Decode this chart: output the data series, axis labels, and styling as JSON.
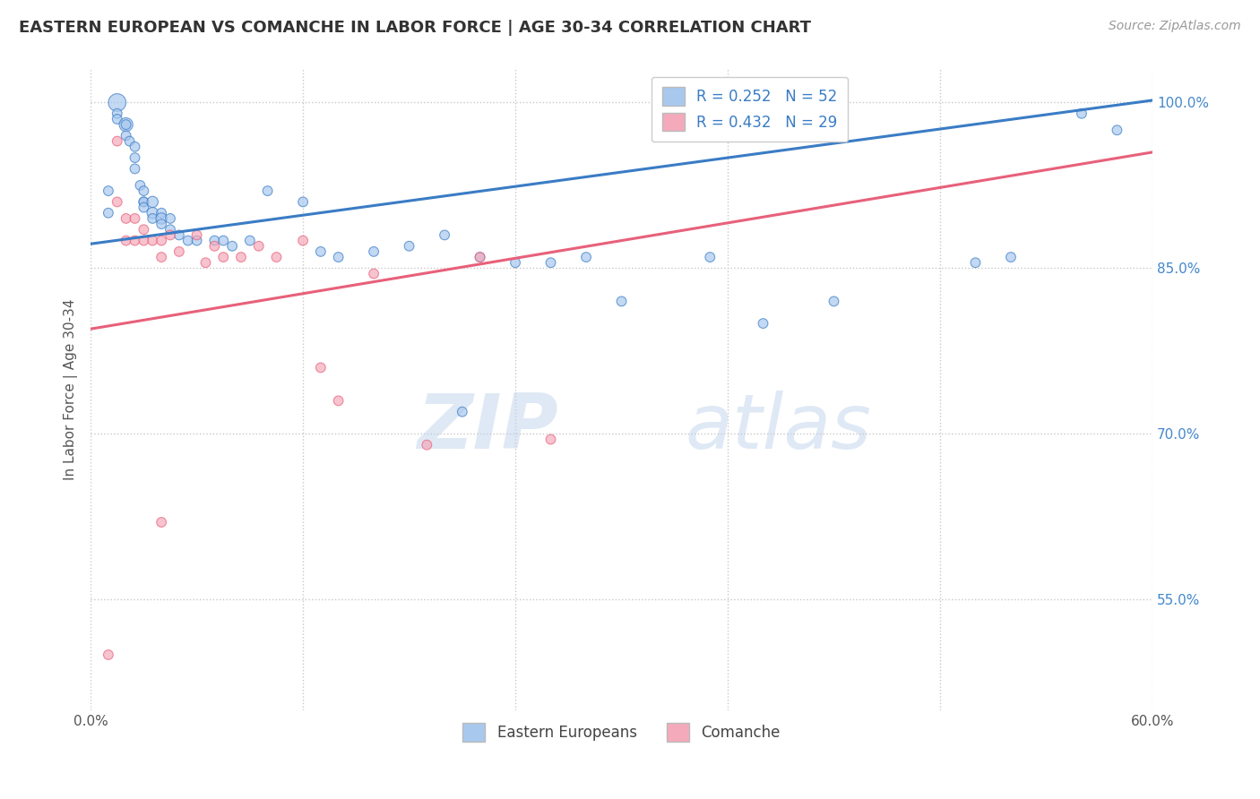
{
  "title": "EASTERN EUROPEAN VS COMANCHE IN LABOR FORCE | AGE 30-34 CORRELATION CHART",
  "source_text": "Source: ZipAtlas.com",
  "ylabel_text": "In Labor Force | Age 30-34",
  "xlim": [
    0.0,
    0.6
  ],
  "ylim": [
    0.45,
    1.03
  ],
  "xticks": [
    0.0,
    0.12,
    0.24,
    0.36,
    0.48,
    0.6
  ],
  "xticklabels": [
    "0.0%",
    "",
    "",
    "",
    "",
    "60.0%"
  ],
  "ytick_positions": [
    0.55,
    0.7,
    0.85,
    1.0
  ],
  "ytick_labels": [
    "55.0%",
    "70.0%",
    "85.0%",
    "100.0%"
  ],
  "blue_R": 0.252,
  "blue_N": 52,
  "pink_R": 0.432,
  "pink_N": 29,
  "blue_color": "#A8C8EE",
  "pink_color": "#F4AABB",
  "blue_line_color": "#3A7CC5",
  "pink_line_color": "#E8607A",
  "background_color": "#FFFFFF",
  "grid_color": "#C8C8C8",
  "blue_line_x0": 0.0,
  "blue_line_y0": 0.872,
  "blue_line_x1": 0.6,
  "blue_line_y1": 1.002,
  "pink_line_x0": 0.0,
  "pink_line_y0": 0.795,
  "pink_line_x1": 0.6,
  "pink_line_y1": 0.955,
  "blue_scatter_x": [
    0.01,
    0.01,
    0.015,
    0.015,
    0.015,
    0.02,
    0.02,
    0.02,
    0.022,
    0.025,
    0.025,
    0.025,
    0.028,
    0.03,
    0.03,
    0.03,
    0.03,
    0.035,
    0.035,
    0.035,
    0.04,
    0.04,
    0.04,
    0.045,
    0.045,
    0.05,
    0.055,
    0.06,
    0.07,
    0.075,
    0.08,
    0.09,
    0.1,
    0.12,
    0.13,
    0.14,
    0.16,
    0.18,
    0.2,
    0.21,
    0.22,
    0.24,
    0.26,
    0.28,
    0.3,
    0.35,
    0.38,
    0.42,
    0.5,
    0.52,
    0.56,
    0.58
  ],
  "blue_scatter_y": [
    0.92,
    0.9,
    1.0,
    0.99,
    0.985,
    0.98,
    0.98,
    0.97,
    0.965,
    0.96,
    0.95,
    0.94,
    0.925,
    0.92,
    0.91,
    0.91,
    0.905,
    0.91,
    0.9,
    0.895,
    0.9,
    0.895,
    0.89,
    0.895,
    0.885,
    0.88,
    0.875,
    0.875,
    0.875,
    0.875,
    0.87,
    0.875,
    0.92,
    0.91,
    0.865,
    0.86,
    0.865,
    0.87,
    0.88,
    0.72,
    0.86,
    0.855,
    0.855,
    0.86,
    0.82,
    0.86,
    0.8,
    0.82,
    0.855,
    0.86,
    0.99,
    0.975
  ],
  "blue_marker_sizes": [
    60,
    60,
    200,
    60,
    60,
    120,
    60,
    60,
    60,
    60,
    60,
    60,
    60,
    60,
    60,
    60,
    60,
    80,
    80,
    60,
    60,
    80,
    60,
    60,
    60,
    60,
    60,
    60,
    60,
    60,
    60,
    60,
    60,
    60,
    60,
    60,
    60,
    60,
    60,
    60,
    60,
    60,
    60,
    60,
    60,
    60,
    60,
    60,
    60,
    60,
    60,
    60
  ],
  "pink_scatter_x": [
    0.01,
    0.015,
    0.015,
    0.02,
    0.02,
    0.025,
    0.025,
    0.03,
    0.03,
    0.035,
    0.04,
    0.04,
    0.045,
    0.05,
    0.06,
    0.065,
    0.07,
    0.075,
    0.085,
    0.095,
    0.105,
    0.12,
    0.13,
    0.14,
    0.16,
    0.19,
    0.22,
    0.26,
    0.04
  ],
  "pink_scatter_y": [
    0.5,
    0.965,
    0.91,
    0.895,
    0.875,
    0.895,
    0.875,
    0.885,
    0.875,
    0.875,
    0.875,
    0.86,
    0.88,
    0.865,
    0.88,
    0.855,
    0.87,
    0.86,
    0.86,
    0.87,
    0.86,
    0.875,
    0.76,
    0.73,
    0.845,
    0.69,
    0.86,
    0.695,
    0.62
  ],
  "pink_marker_sizes": [
    60,
    60,
    60,
    60,
    60,
    60,
    60,
    60,
    60,
    60,
    60,
    60,
    60,
    60,
    60,
    60,
    60,
    60,
    60,
    60,
    60,
    60,
    60,
    60,
    60,
    60,
    60,
    60,
    60
  ]
}
